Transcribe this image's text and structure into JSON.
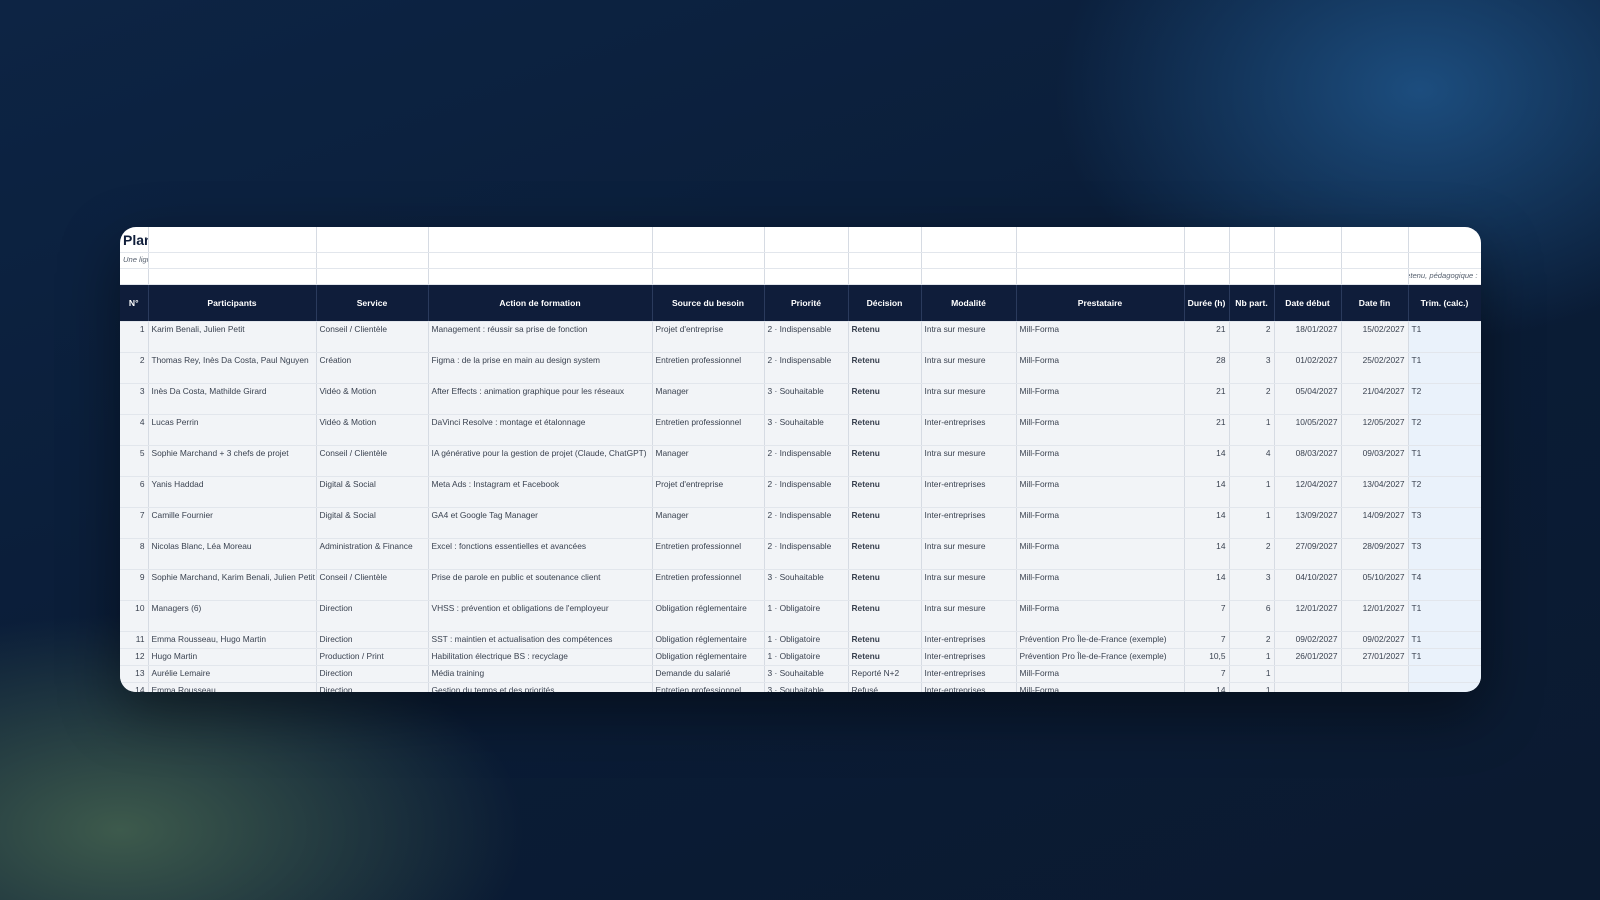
{
  "sheet": {
    "title": "Plan de développement des compétences : arbitrage",
    "subtitle": "Une ligne par action. Seules les lignes « Retenu » remontent dans Budget, Suivi et Bilan CSE. Colonnes bleutées calculées.",
    "note": "Retenu, pédagogique :",
    "headers": {
      "num": "N°",
      "participants": "Participants",
      "service": "Service",
      "action": "Action de formation",
      "source": "Source du besoin",
      "priorite": "Priorité",
      "decision": "Décision",
      "modalite": "Modalité",
      "prestataire": "Prestataire",
      "duree": "Durée (h)",
      "nbpart": "Nb part.",
      "debut": "Date début",
      "fin": "Date fin",
      "trim": "Trim. (calc.)"
    },
    "rows": [
      {
        "num": "1",
        "participants": "Karim Benali, Julien Petit",
        "service": "Conseil / Clientèle",
        "action": "Management : réussir sa prise de fonction",
        "source": "Projet d'entreprise",
        "priorite": "2 · Indispensable",
        "decision": "Retenu",
        "modalite": "Intra sur mesure",
        "prestataire": "Mill-Forma",
        "duree": "21",
        "nbpart": "2",
        "debut": "18/01/2027",
        "fin": "15/02/2027",
        "trim": "T1"
      },
      {
        "num": "2",
        "participants": "Thomas Rey, Inès Da Costa, Paul Nguyen",
        "service": "Création",
        "action": "Figma : de la prise en main au design system",
        "source": "Entretien professionnel",
        "priorite": "2 · Indispensable",
        "decision": "Retenu",
        "modalite": "Intra sur mesure",
        "prestataire": "Mill-Forma",
        "duree": "28",
        "nbpart": "3",
        "debut": "01/02/2027",
        "fin": "25/02/2027",
        "trim": "T1"
      },
      {
        "num": "3",
        "participants": "Inès Da Costa, Mathilde Girard",
        "service": "Vidéo & Motion",
        "action": "After Effects : animation graphique pour les réseaux",
        "source": "Manager",
        "priorite": "3 · Souhaitable",
        "decision": "Retenu",
        "modalite": "Intra sur mesure",
        "prestataire": "Mill-Forma",
        "duree": "21",
        "nbpart": "2",
        "debut": "05/04/2027",
        "fin": "21/04/2027",
        "trim": "T2"
      },
      {
        "num": "4",
        "participants": "Lucas Perrin",
        "service": "Vidéo & Motion",
        "action": "DaVinci Resolve : montage et étalonnage",
        "source": "Entretien professionnel",
        "priorite": "3 · Souhaitable",
        "decision": "Retenu",
        "modalite": "Inter-entreprises",
        "prestataire": "Mill-Forma",
        "duree": "21",
        "nbpart": "1",
        "debut": "10/05/2027",
        "fin": "12/05/2027",
        "trim": "T2"
      },
      {
        "num": "5",
        "participants": "Sophie Marchand + 3 chefs de projet",
        "service": "Conseil / Clientèle",
        "action": "IA générative pour la gestion de projet (Claude, ChatGPT)",
        "source": "Manager",
        "priorite": "2 · Indispensable",
        "decision": "Retenu",
        "modalite": "Intra sur mesure",
        "prestataire": "Mill-Forma",
        "duree": "14",
        "nbpart": "4",
        "debut": "08/03/2027",
        "fin": "09/03/2027",
        "trim": "T1"
      },
      {
        "num": "6",
        "participants": "Yanis Haddad",
        "service": "Digital & Social",
        "action": "Meta Ads : Instagram et Facebook",
        "source": "Projet d'entreprise",
        "priorite": "2 · Indispensable",
        "decision": "Retenu",
        "modalite": "Inter-entreprises",
        "prestataire": "Mill-Forma",
        "duree": "14",
        "nbpart": "1",
        "debut": "12/04/2027",
        "fin": "13/04/2027",
        "trim": "T2"
      },
      {
        "num": "7",
        "participants": "Camille Fournier",
        "service": "Digital & Social",
        "action": "GA4 et Google Tag Manager",
        "source": "Manager",
        "priorite": "2 · Indispensable",
        "decision": "Retenu",
        "modalite": "Inter-entreprises",
        "prestataire": "Mill-Forma",
        "duree": "14",
        "nbpart": "1",
        "debut": "13/09/2027",
        "fin": "14/09/2027",
        "trim": "T3"
      },
      {
        "num": "8",
        "participants": "Nicolas Blanc, Léa Moreau",
        "service": "Administration & Finance",
        "action": "Excel : fonctions essentielles et avancées",
        "source": "Entretien professionnel",
        "priorite": "2 · Indispensable",
        "decision": "Retenu",
        "modalite": "Intra sur mesure",
        "prestataire": "Mill-Forma",
        "duree": "14",
        "nbpart": "2",
        "debut": "27/09/2027",
        "fin": "28/09/2027",
        "trim": "T3"
      },
      {
        "num": "9",
        "participants": "Sophie Marchand, Karim Benali, Julien Petit",
        "service": "Conseil / Clientèle",
        "action": "Prise de parole en public et soutenance client",
        "source": "Entretien professionnel",
        "priorite": "3 · Souhaitable",
        "decision": "Retenu",
        "modalite": "Intra sur mesure",
        "prestataire": "Mill-Forma",
        "duree": "14",
        "nbpart": "3",
        "debut": "04/10/2027",
        "fin": "05/10/2027",
        "trim": "T4"
      },
      {
        "num": "10",
        "participants": "Managers (6)",
        "service": "Direction",
        "action": "VHSS : prévention et obligations de l'employeur",
        "source": "Obligation réglementaire",
        "priorite": "1 · Obligatoire",
        "decision": "Retenu",
        "modalite": "Intra sur mesure",
        "prestataire": "Mill-Forma",
        "duree": "7",
        "nbpart": "6",
        "debut": "12/01/2027",
        "fin": "12/01/2027",
        "trim": "T1"
      },
      {
        "num": "11",
        "participants": "Emma Rousseau, Hugo Martin",
        "service": "Direction",
        "action": "SST : maintien et actualisation des compétences",
        "source": "Obligation réglementaire",
        "priorite": "1 · Obligatoire",
        "decision": "Retenu",
        "modalite": "Inter-entreprises",
        "prestataire": "Prévention Pro Île-de-France (exemple)",
        "duree": "7",
        "nbpart": "2",
        "debut": "09/02/2027",
        "fin": "09/02/2027",
        "trim": "T1"
      },
      {
        "num": "12",
        "participants": "Hugo Martin",
        "service": "Production / Print",
        "action": "Habilitation électrique BS : recyclage",
        "source": "Obligation réglementaire",
        "priorite": "1 · Obligatoire",
        "decision": "Retenu",
        "modalite": "Inter-entreprises",
        "prestataire": "Prévention Pro Île-de-France (exemple)",
        "duree": "10,5",
        "nbpart": "1",
        "debut": "26/01/2027",
        "fin": "27/01/2027",
        "trim": "T1"
      },
      {
        "num": "13",
        "participants": "Aurélie Lemaire",
        "service": "Direction",
        "action": "Média training",
        "source": "Demande du salarié",
        "priorite": "3 · Souhaitable",
        "decision": "Reporté N+2",
        "modalite": "Inter-entreprises",
        "prestataire": "Mill-Forma",
        "duree": "7",
        "nbpart": "1",
        "debut": "",
        "fin": "",
        "trim": ""
      },
      {
        "num": "14",
        "participants": "Emma Rousseau",
        "service": "Direction",
        "action": "Gestion du temps et des priorités",
        "source": "Entretien professionnel",
        "priorite": "3 · Souhaitable",
        "decision": "Refusé",
        "modalite": "Inter-entreprises",
        "prestataire": "Mill-Forma",
        "duree": "14",
        "nbpart": "1",
        "debut": "",
        "fin": "",
        "trim": ""
      }
    ]
  },
  "colors": {
    "header_bg": "#0f1d3a",
    "retenu": "#1f7a3a",
    "reporte": "#b23a1a",
    "refuse": "#c0392b",
    "calc_column": "#eaf2fb"
  }
}
